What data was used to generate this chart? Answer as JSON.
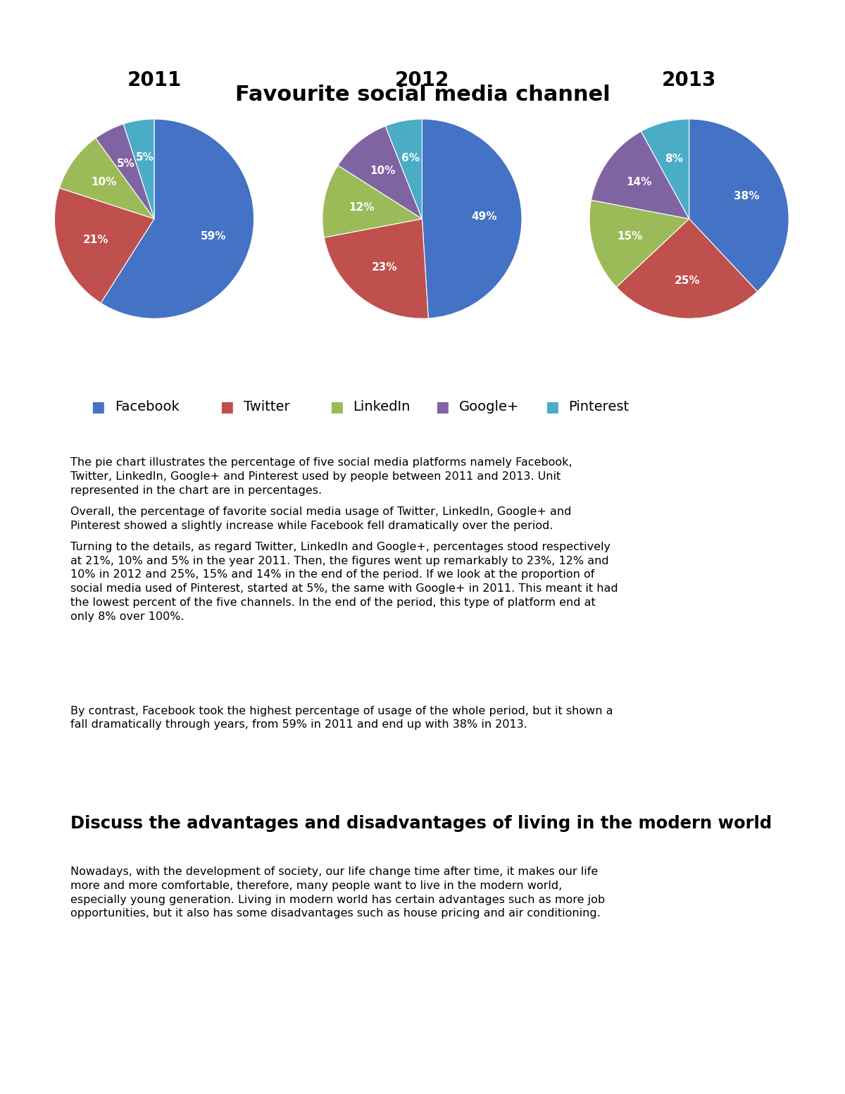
{
  "title": "Favourite social media channel",
  "title_fontsize": 22,
  "years": [
    "2011",
    "2012",
    "2013"
  ],
  "year_fontsize": 20,
  "platforms": [
    "Facebook",
    "Twitter",
    "LinkedIn",
    "Google+",
    "Pinterest"
  ],
  "colors": [
    "#4472C4",
    "#C0504D",
    "#9BBB59",
    "#8064A2",
    "#4BACC6"
  ],
  "data_2011": [
    59,
    21,
    10,
    5,
    5
  ],
  "data_2012": [
    49,
    23,
    12,
    10,
    6
  ],
  "data_2013": [
    38,
    25,
    15,
    14,
    8
  ],
  "label_fontsize": 11,
  "label_color": "white",
  "legend_fontsize": 14,
  "body_text_1": "The pie chart illustrates the percentage of five social media platforms namely Facebook,\nTwitter, LinkedIn, Google+ and Pinterest used by people between 2011 and 2013. Unit\nrepresented in the chart are in percentages.",
  "body_text_2": "Overall, the percentage of favorite social media usage of Twitter, LinkedIn, Google+ and\nPinterest showed a slightly increase while Facebook fell dramatically over the period.",
  "body_text_3": "Turning to the details, as regard Twitter, LinkedIn and Google+, percentages stood respectively\nat 21%, 10% and 5% in the year 2011. Then, the figures went up remarkably to 23%, 12% and\n10% in 2012 and 25%, 15% and 14% in the end of the period. If we look at the proportion of\nsocial media used of Pinterest, started at 5%, the same with Google+ in 2011. This meant it had\nthe lowest percent of the five channels. In the end of the period, this type of platform end at\nonly 8% over 100%.",
  "body_text_4": "By contrast, Facebook took the highest percentage of usage of the whole period, but it shown a\nfall dramatically through years, from 59% in 2011 and end up with 38% in 2013.",
  "section2_title": "Discuss the advantages and disadvantages of living in the modern world",
  "section2_body": "Nowadays, with the development of society, our life change time after time, it makes our life\nmore and more comfortable, therefore, many people want to live in the modern world,\nespecially young generation. Living in modern world has certain advantages such as more job\nopportunities, but it also has some disadvantages such as house pricing and air conditioning.",
  "bg_color": "#FFFFFF",
  "fig_width": 12.0,
  "fig_height": 15.53,
  "dpi": 100
}
